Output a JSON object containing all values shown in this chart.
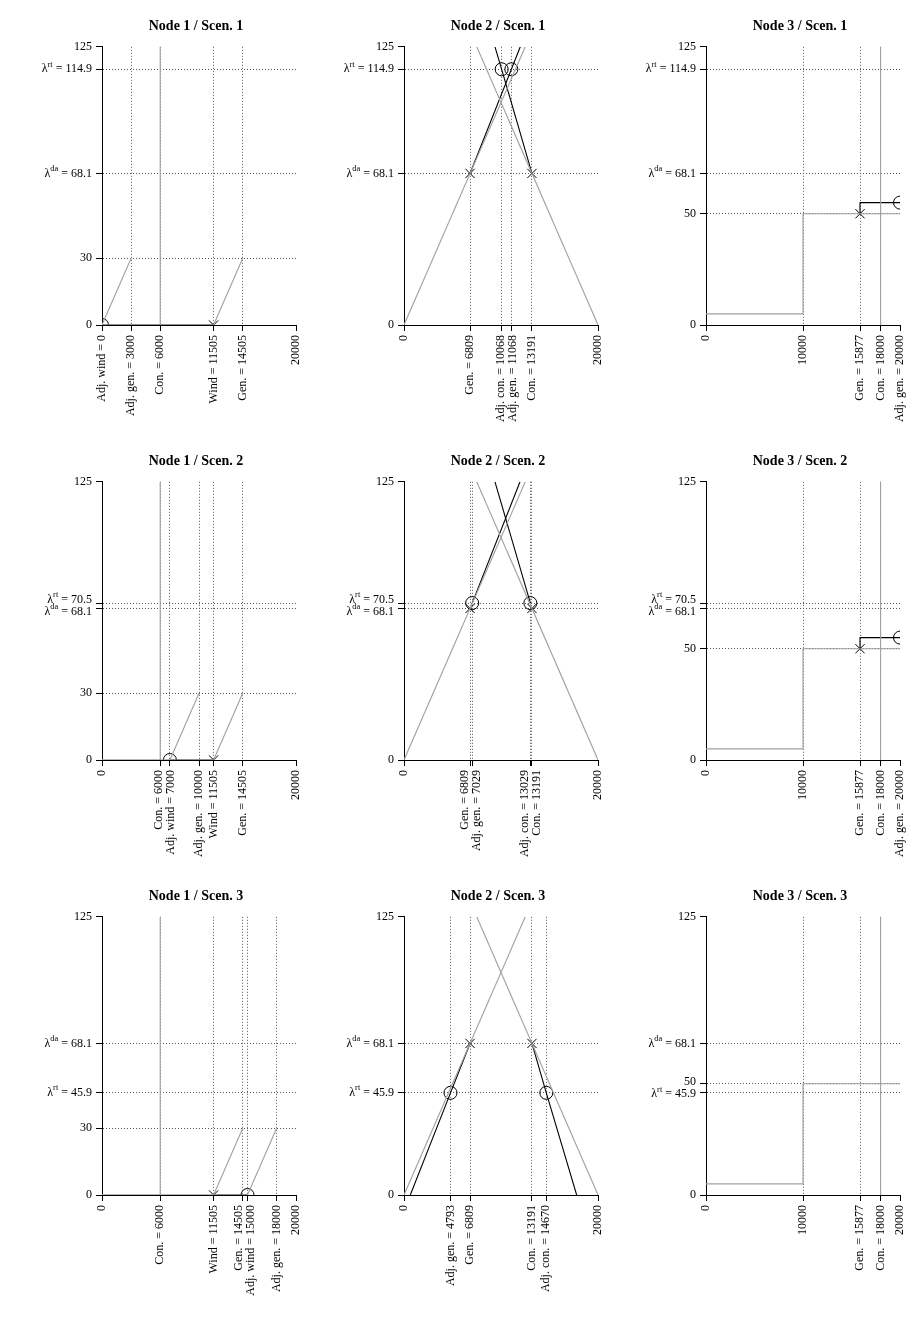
{
  "chart_data": [
    {
      "type": "line",
      "title": "Node 1 / Scen. 1",
      "xlim": [
        0,
        20000
      ],
      "ylim": [
        0,
        125
      ],
      "grid": true,
      "xticks": [
        {
          "value": 0,
          "label": "Adj. wind = 0"
        },
        {
          "value": 3000,
          "label": "Adj. gen. = 3000"
        },
        {
          "value": 6000,
          "label": "Con. = 6000"
        },
        {
          "value": 11505,
          "label": "Wind = 11505"
        },
        {
          "value": 14505,
          "label": "Gen. = 14505"
        },
        20000
      ],
      "yticks": [
        0,
        30,
        {
          "value": 68.1,
          "label": "λ$^{da}$ = 68.1"
        },
        {
          "value": 114.9,
          "label": "λ$^{rt}$ = 114.9"
        },
        125
      ],
      "series": [
        {
          "color": "#a0a0a0",
          "x": [
            0,
            3000
          ],
          "values": [
            0,
            30
          ]
        },
        {
          "color": "#a0a0a0",
          "x": [
            0,
            11505,
            14505
          ],
          "values": [
            0,
            0,
            30
          ]
        },
        {
          "color": "#a0a0a0",
          "x": [
            6000,
            6000
          ],
          "values": [
            0,
            125
          ]
        },
        {
          "color": "#000000",
          "x": [
            0,
            11505
          ],
          "values": [
            0,
            0
          ]
        },
        {
          "type": "scatter",
          "marker": "circle",
          "color": "#000000",
          "x": [
            0
          ],
          "values": [
            0
          ]
        },
        {
          "type": "scatter",
          "marker": "cross",
          "color": "#000000",
          "x": [
            11505
          ],
          "values": [
            0
          ]
        }
      ]
    },
    {
      "type": "line",
      "title": "Node 2 / Scen. 1",
      "xlim": [
        0,
        20000
      ],
      "ylim": [
        0,
        125
      ],
      "grid": true,
      "xticks": [
        0,
        {
          "value": 6809,
          "label": "Gen. = 6809"
        },
        {
          "value": 10068,
          "label": "Adj. con. = 10068"
        },
        {
          "value": 11068,
          "label": "Adj. gen. = 11068"
        },
        {
          "value": 13191,
          "label": "Con. = 13191"
        },
        20000
      ],
      "yticks": [
        0,
        {
          "value": 68.1,
          "label": "λ$^{da}$ = 68.1"
        },
        {
          "value": 114.9,
          "label": "λ$^{rt}$ = 114.9"
        },
        125
      ],
      "series": [
        {
          "color": "#a0a0a0",
          "x": [
            0,
            12500
          ],
          "values": [
            0,
            125
          ]
        },
        {
          "color": "#a0a0a0",
          "x": [
            7500,
            20000
          ],
          "values": [
            125,
            0
          ]
        },
        {
          "color": "#000000",
          "x": [
            6809,
            11068,
            11990
          ],
          "values": [
            68.1,
            114.9,
            125
          ]
        },
        {
          "color": "#000000",
          "x": [
            13191,
            10068,
            9380
          ],
          "values": [
            68.1,
            114.9,
            125
          ]
        },
        {
          "type": "scatter",
          "marker": "circle",
          "color": "#000000",
          "x": [
            10068,
            11068
          ],
          "values": [
            114.9,
            114.9
          ]
        },
        {
          "type": "scatter",
          "marker": "cross",
          "color": "#000000",
          "x": [
            6809,
            13191
          ],
          "values": [
            68.1,
            68.1
          ]
        }
      ]
    },
    {
      "type": "line",
      "title": "Node 3 / Scen. 1",
      "xlim": [
        0,
        20000
      ],
      "ylim": [
        0,
        125
      ],
      "grid": true,
      "xticks": [
        0,
        10000,
        {
          "value": 15877,
          "label": "Gen. = 15877"
        },
        {
          "value": 18000,
          "label": "Con. = 18000"
        },
        {
          "value": 20000,
          "label": "Adj. gen. = 20000"
        }
      ],
      "yticks": [
        0,
        50,
        {
          "value": 68.1,
          "label": "λ$^{da}$ = 68.1"
        },
        {
          "value": 114.9,
          "label": "λ$^{rt}$ = 114.9"
        },
        125
      ],
      "series": [
        {
          "color": "#a0a0a0",
          "x": [
            0,
            10000,
            10000,
            20000
          ],
          "values": [
            5,
            5,
            50,
            50
          ]
        },
        {
          "color": "#a0a0a0",
          "x": [
            18000,
            18000
          ],
          "values": [
            0,
            125
          ]
        },
        {
          "color": "#000000",
          "x": [
            15877,
            15877,
            20000
          ],
          "values": [
            50,
            55,
            55
          ]
        },
        {
          "type": "scatter",
          "marker": "circle",
          "color": "#000000",
          "x": [
            20000
          ],
          "values": [
            55
          ]
        },
        {
          "type": "scatter",
          "marker": "cross",
          "color": "#000000",
          "x": [
            15877
          ],
          "values": [
            50
          ]
        }
      ]
    },
    {
      "type": "line",
      "title": "Node 1 / Scen. 2",
      "xlim": [
        0,
        20000
      ],
      "ylim": [
        0,
        125
      ],
      "grid": true,
      "xticks": [
        0,
        {
          "value": 6000,
          "label": "Con. = 6000"
        },
        {
          "value": 7000,
          "label": "Adj. wind = 7000"
        },
        {
          "value": 10000,
          "label": "Adj. gen. = 10000"
        },
        {
          "value": 11505,
          "label": "Wind = 11505"
        },
        {
          "value": 14505,
          "label": "Gen. = 14505"
        },
        20000
      ],
      "yticks": [
        0,
        30,
        {
          "value": 68.1,
          "label": "λ$^{da}$ = 68.1"
        },
        {
          "value": 70.5,
          "label": "λ$^{rt}$ = 70.5"
        },
        125
      ],
      "series": [
        {
          "color": "#a0a0a0",
          "x": [
            0,
            7000,
            10000
          ],
          "values": [
            0,
            0,
            30
          ]
        },
        {
          "color": "#a0a0a0",
          "x": [
            0,
            11505,
            14505
          ],
          "values": [
            0,
            0,
            30
          ]
        },
        {
          "color": "#a0a0a0",
          "x": [
            6000,
            6000
          ],
          "values": [
            0,
            125
          ]
        },
        {
          "color": "#000000",
          "x": [
            7000,
            11505
          ],
          "values": [
            0,
            0
          ]
        },
        {
          "type": "scatter",
          "marker": "circle",
          "color": "#000000",
          "x": [
            7000
          ],
          "values": [
            0
          ]
        },
        {
          "type": "scatter",
          "marker": "cross",
          "color": "#000000",
          "x": [
            11505
          ],
          "values": [
            0
          ]
        }
      ]
    },
    {
      "type": "line",
      "title": "Node 2 / Scen. 2",
      "xlim": [
        0,
        20000
      ],
      "ylim": [
        0,
        125
      ],
      "grid": true,
      "xticks": [
        0,
        {
          "value": 6809,
          "label": "Gen. = 6809"
        },
        {
          "value": 7029,
          "label": "Adj. gen. = 7029"
        },
        {
          "value": 13029,
          "label": "Adj. con. = 13029"
        },
        {
          "value": 13191,
          "label": "Con. = 13191"
        },
        20000
      ],
      "yticks": [
        0,
        {
          "value": 68.1,
          "label": "λ$^{da}$ = 68.1"
        },
        {
          "value": 70.5,
          "label": "λ$^{rt}$ = 70.5"
        },
        125
      ],
      "series": [
        {
          "color": "#a0a0a0",
          "x": [
            0,
            12500
          ],
          "values": [
            0,
            125
          ]
        },
        {
          "color": "#a0a0a0",
          "x": [
            7500,
            20000
          ],
          "values": [
            125,
            0
          ]
        },
        {
          "color": "#000000",
          "x": [
            7029,
            11960
          ],
          "values": [
            70.5,
            125
          ]
        },
        {
          "color": "#000000",
          "x": [
            13029,
            9380
          ],
          "values": [
            70.5,
            125
          ]
        },
        {
          "type": "scatter",
          "marker": "circle",
          "color": "#000000",
          "x": [
            7029,
            13029
          ],
          "values": [
            70.5,
            70.5
          ]
        },
        {
          "type": "scatter",
          "marker": "cross",
          "color": "#000000",
          "x": [
            6809,
            13191
          ],
          "values": [
            68.1,
            68.1
          ]
        }
      ]
    },
    {
      "type": "line",
      "title": "Node 3 / Scen. 2",
      "xlim": [
        0,
        20000
      ],
      "ylim": [
        0,
        125
      ],
      "grid": true,
      "xticks": [
        0,
        10000,
        {
          "value": 15877,
          "label": "Gen. = 15877"
        },
        {
          "value": 18000,
          "label": "Con. = 18000"
        },
        {
          "value": 20000,
          "label": "Adj. gen. = 20000"
        }
      ],
      "yticks": [
        0,
        50,
        {
          "value": 68.1,
          "label": "λ$^{da}$ = 68.1"
        },
        {
          "value": 70.5,
          "label": "λ$^{rt}$ = 70.5"
        },
        125
      ],
      "series": [
        {
          "color": "#a0a0a0",
          "x": [
            0,
            10000,
            10000,
            20000
          ],
          "values": [
            5,
            5,
            50,
            50
          ]
        },
        {
          "color": "#a0a0a0",
          "x": [
            18000,
            18000
          ],
          "values": [
            0,
            125
          ]
        },
        {
          "color": "#000000",
          "x": [
            15877,
            15877,
            20000
          ],
          "values": [
            50,
            55,
            55
          ]
        },
        {
          "type": "scatter",
          "marker": "circle",
          "color": "#000000",
          "x": [
            20000
          ],
          "values": [
            55
          ]
        },
        {
          "type": "scatter",
          "marker": "cross",
          "color": "#000000",
          "x": [
            15877
          ],
          "values": [
            50
          ]
        }
      ]
    },
    {
      "type": "line",
      "title": "Node 1 / Scen. 3",
      "xlim": [
        0,
        20000
      ],
      "ylim": [
        0,
        125
      ],
      "grid": true,
      "xticks": [
        0,
        {
          "value": 6000,
          "label": "Con. = 6000"
        },
        {
          "value": 11505,
          "label": "Wind = 11505"
        },
        {
          "value": 14505,
          "label": "Gen. = 14505"
        },
        {
          "value": 15000,
          "label": "Adj. wind = 15000"
        },
        {
          "value": 18000,
          "label": "Adj. gen. = 18000"
        },
        20000
      ],
      "yticks": [
        0,
        30,
        {
          "value": 45.9,
          "label": "λ$^{rt}$ = 45.9"
        },
        {
          "value": 68.1,
          "label": "λ$^{da}$ = 68.1"
        },
        125
      ],
      "series": [
        {
          "color": "#a0a0a0",
          "x": [
            0,
            11505,
            14505
          ],
          "values": [
            0,
            0,
            30
          ]
        },
        {
          "color": "#a0a0a0",
          "x": [
            0,
            15000,
            18000
          ],
          "values": [
            0,
            0,
            30
          ]
        },
        {
          "color": "#a0a0a0",
          "x": [
            6000,
            6000
          ],
          "values": [
            0,
            125
          ]
        },
        {
          "color": "#000000",
          "x": [
            11505,
            15000
          ],
          "values": [
            0,
            0
          ]
        },
        {
          "type": "scatter",
          "marker": "circle",
          "color": "#000000",
          "x": [
            15000
          ],
          "values": [
            0
          ]
        },
        {
          "type": "scatter",
          "marker": "cross",
          "color": "#000000",
          "x": [
            11505
          ],
          "values": [
            0
          ]
        }
      ]
    },
    {
      "type": "line",
      "title": "Node 2 / Scen. 3",
      "xlim": [
        0,
        20000
      ],
      "ylim": [
        0,
        125
      ],
      "grid": true,
      "xticks": [
        0,
        {
          "value": 4793,
          "label": "Adj. gen. = 4793"
        },
        {
          "value": 6809,
          "label": "Gen. = 6809"
        },
        {
          "value": 13191,
          "label": "Con. = 13191"
        },
        {
          "value": 14670,
          "label": "Adj. con. = 14670"
        },
        20000
      ],
      "yticks": [
        0,
        {
          "value": 45.9,
          "label": "λ$^{rt}$ = 45.9"
        },
        {
          "value": 68.1,
          "label": "λ$^{da}$ = 68.1"
        },
        125
      ],
      "series": [
        {
          "color": "#a0a0a0",
          "x": [
            0,
            12500
          ],
          "values": [
            0,
            125
          ]
        },
        {
          "color": "#a0a0a0",
          "x": [
            7500,
            20000
          ],
          "values": [
            125,
            0
          ]
        },
        {
          "color": "#000000",
          "x": [
            650,
            4793,
            6809
          ],
          "values": [
            0,
            45.9,
            68.1
          ]
        },
        {
          "color": "#000000",
          "x": [
            13191,
            14670,
            17800
          ],
          "values": [
            68.1,
            45.9,
            0
          ]
        },
        {
          "type": "scatter",
          "marker": "circle",
          "color": "#000000",
          "x": [
            4793,
            14670
          ],
          "values": [
            45.9,
            45.9
          ]
        },
        {
          "type": "scatter",
          "marker": "cross",
          "color": "#000000",
          "x": [
            6809,
            13191
          ],
          "values": [
            68.1,
            68.1
          ]
        }
      ]
    },
    {
      "type": "line",
      "title": "Node 3 / Scen. 3",
      "xlim": [
        0,
        20000
      ],
      "ylim": [
        0,
        125
      ],
      "grid": true,
      "xticks": [
        0,
        10000,
        {
          "value": 15877,
          "label": "Gen. = 15877"
        },
        {
          "value": 18000,
          "label": "Con. = 18000"
        },
        20000
      ],
      "yticks": [
        0,
        {
          "value": 45.9,
          "label": "λ$^{rt}$ = 45.9"
        },
        50,
        {
          "value": 68.1,
          "label": "λ$^{da}$ = 68.1"
        },
        125
      ],
      "series": [
        {
          "color": "#a0a0a0",
          "x": [
            0,
            10000,
            10000,
            20000
          ],
          "values": [
            5,
            5,
            50,
            50
          ]
        },
        {
          "color": "#a0a0a0",
          "x": [
            18000,
            18000
          ],
          "values": [
            0,
            125
          ]
        }
      ]
    }
  ]
}
